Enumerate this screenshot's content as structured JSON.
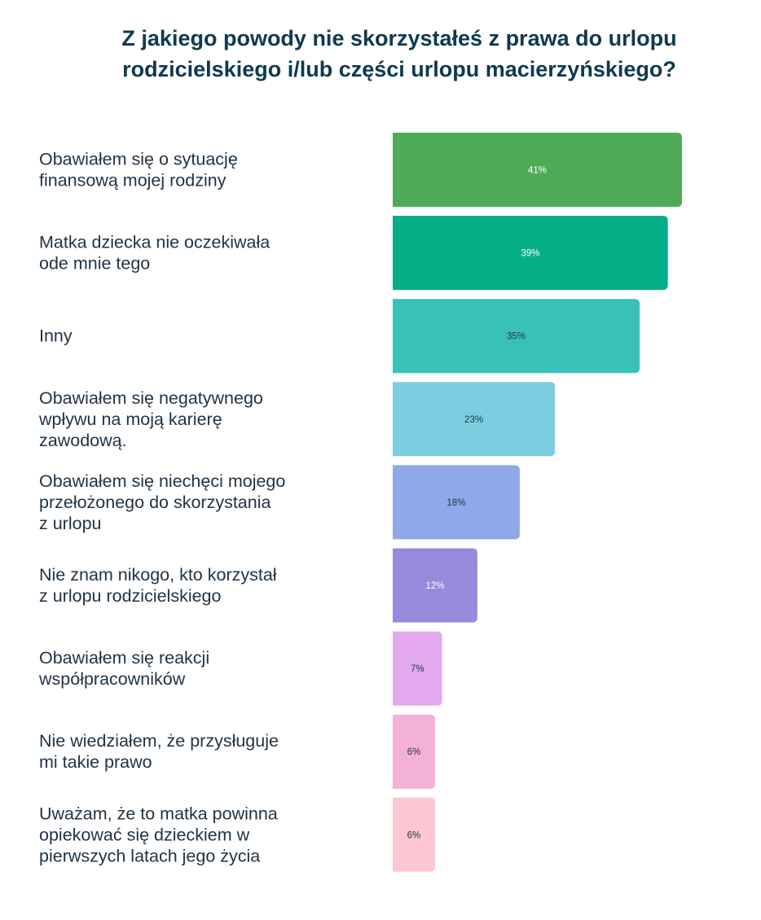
{
  "chart_data": {
    "type": "bar",
    "orientation": "horizontal",
    "title_lines": [
      "Z jakiego powody nie skorzystałeś z prawa do urlopu",
      "rodzicielskiego i/lub części urlopu macierzyńskiego?"
    ],
    "xlabel": "",
    "ylabel": "",
    "xlim": [
      0,
      41
    ],
    "grid": false,
    "legend": "none",
    "categories": [
      [
        "Obawiałem się o sytuację",
        "finansową mojej rodziny"
      ],
      [
        "Matka dziecka nie oczekiwała",
        "ode mnie tego"
      ],
      [
        "Inny"
      ],
      [
        "Obawiałem się negatywnego",
        "wpływu na moją karierę",
        "zawodową."
      ],
      [
        "Obawiałem się niechęci mojego",
        "przełożonego do skorzystania",
        "z urlopu"
      ],
      [
        "Nie znam nikogo, kto korzystał",
        "z urlopu rodzicielskiego"
      ],
      [
        "Obawiałem się reakcji",
        "współpracowników"
      ],
      [
        "Nie wiedziałem, że przysługuje",
        "mi takie prawo"
      ],
      [
        "Uważam, że to matka powinna",
        "opiekować się dzieckiem w",
        "pierwszych latach jego życia"
      ]
    ],
    "values": [
      41,
      39,
      35,
      23,
      18,
      12,
      7,
      6,
      6
    ],
    "data_labels": [
      "41%",
      "39%",
      "35%",
      "23%",
      "18%",
      "12%",
      "7%",
      "6%",
      "6%"
    ],
    "colors": [
      "#4faa57",
      "#06ae88",
      "#39c0b9",
      "#7dcde0",
      "#8ea8e8",
      "#9889dc",
      "#e2a9ee",
      "#f3b1d5",
      "#fdc6d2"
    ],
    "label_colors": [
      "#ffffff",
      "#ffffff",
      "#1f3346",
      "#1f3346",
      "#1f3346",
      "#ffffff",
      "#1f3346",
      "#1f3346",
      "#1f3346"
    ]
  }
}
